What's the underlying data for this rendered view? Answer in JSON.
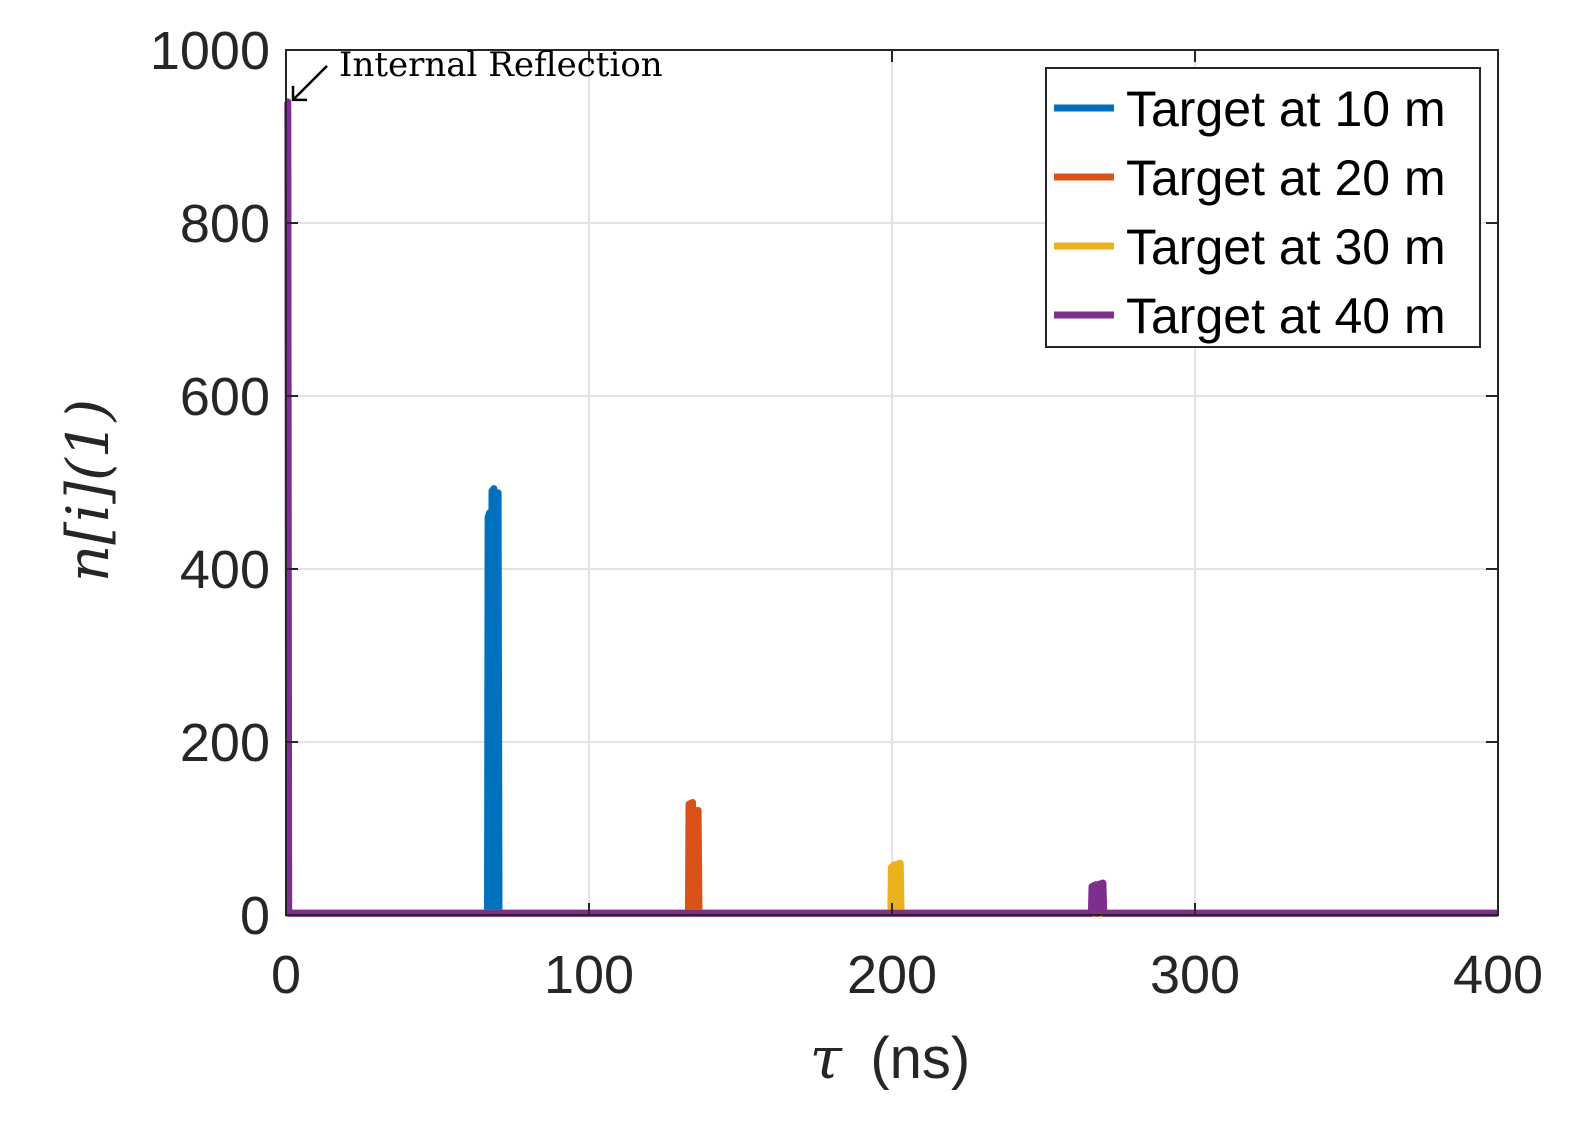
{
  "chart_data": {
    "type": "line",
    "title": "",
    "xlabel": "τ (ns)",
    "xlabel_symbol": "τ",
    "xlabel_unit": "(ns)",
    "ylabel": "n[i](1)",
    "xlim": [
      0,
      400
    ],
    "ylim": [
      0,
      1000
    ],
    "xticks": [
      0,
      100,
      200,
      300,
      400
    ],
    "yticks": [
      0,
      200,
      400,
      600,
      800,
      1000
    ],
    "xtick_labels": [
      "0",
      "100",
      "200",
      "300",
      "400"
    ],
    "ytick_labels": [
      "0",
      "200",
      "400",
      "600",
      "800",
      "1000"
    ],
    "grid": true,
    "legend_position": "top-right",
    "annotation": {
      "text": "Internal Reflection",
      "target": [
        1,
        940
      ]
    },
    "series": [
      {
        "name": "Target at 10 m",
        "color": "#0072BD",
        "points": [
          [
            0,
            2
          ],
          [
            66.5,
            2
          ],
          [
            66.7,
            460
          ],
          [
            67.2,
            465
          ],
          [
            67.5,
            2
          ],
          [
            67.8,
            2
          ],
          [
            68.0,
            490
          ],
          [
            68.6,
            493
          ],
          [
            68.9,
            2
          ],
          [
            69.1,
            2
          ],
          [
            69.3,
            485
          ],
          [
            70.0,
            488
          ],
          [
            70.3,
            2
          ],
          [
            400,
            2
          ]
        ]
      },
      {
        "name": "Target at 20 m",
        "color": "#D95319",
        "points": [
          [
            0,
            2
          ],
          [
            132.8,
            2
          ],
          [
            133.0,
            128
          ],
          [
            134.2,
            130
          ],
          [
            134.5,
            2
          ],
          [
            134.8,
            2
          ],
          [
            135.0,
            118
          ],
          [
            136.0,
            121
          ],
          [
            136.3,
            2
          ],
          [
            400,
            2
          ]
        ]
      },
      {
        "name": "Target at 30 m",
        "color": "#EDB120",
        "points": [
          [
            0,
            2
          ],
          [
            199.6,
            2
          ],
          [
            199.8,
            55
          ],
          [
            200.8,
            58
          ],
          [
            201.1,
            2
          ],
          [
            201.3,
            2
          ],
          [
            201.5,
            58
          ],
          [
            202.7,
            60
          ],
          [
            203.0,
            2
          ],
          [
            400,
            2
          ]
        ]
      },
      {
        "name": "Target at 40 m",
        "color": "#7E2F8E",
        "points": [
          [
            0,
            940
          ],
          [
            0.6,
            940
          ],
          [
            0.9,
            2
          ],
          [
            265.8,
            2
          ],
          [
            266.0,
            33
          ],
          [
            267.3,
            35
          ],
          [
            267.6,
            2
          ],
          [
            267.8,
            2
          ],
          [
            268.0,
            35
          ],
          [
            269.6,
            37
          ],
          [
            269.9,
            2
          ],
          [
            400,
            2
          ]
        ]
      }
    ]
  }
}
